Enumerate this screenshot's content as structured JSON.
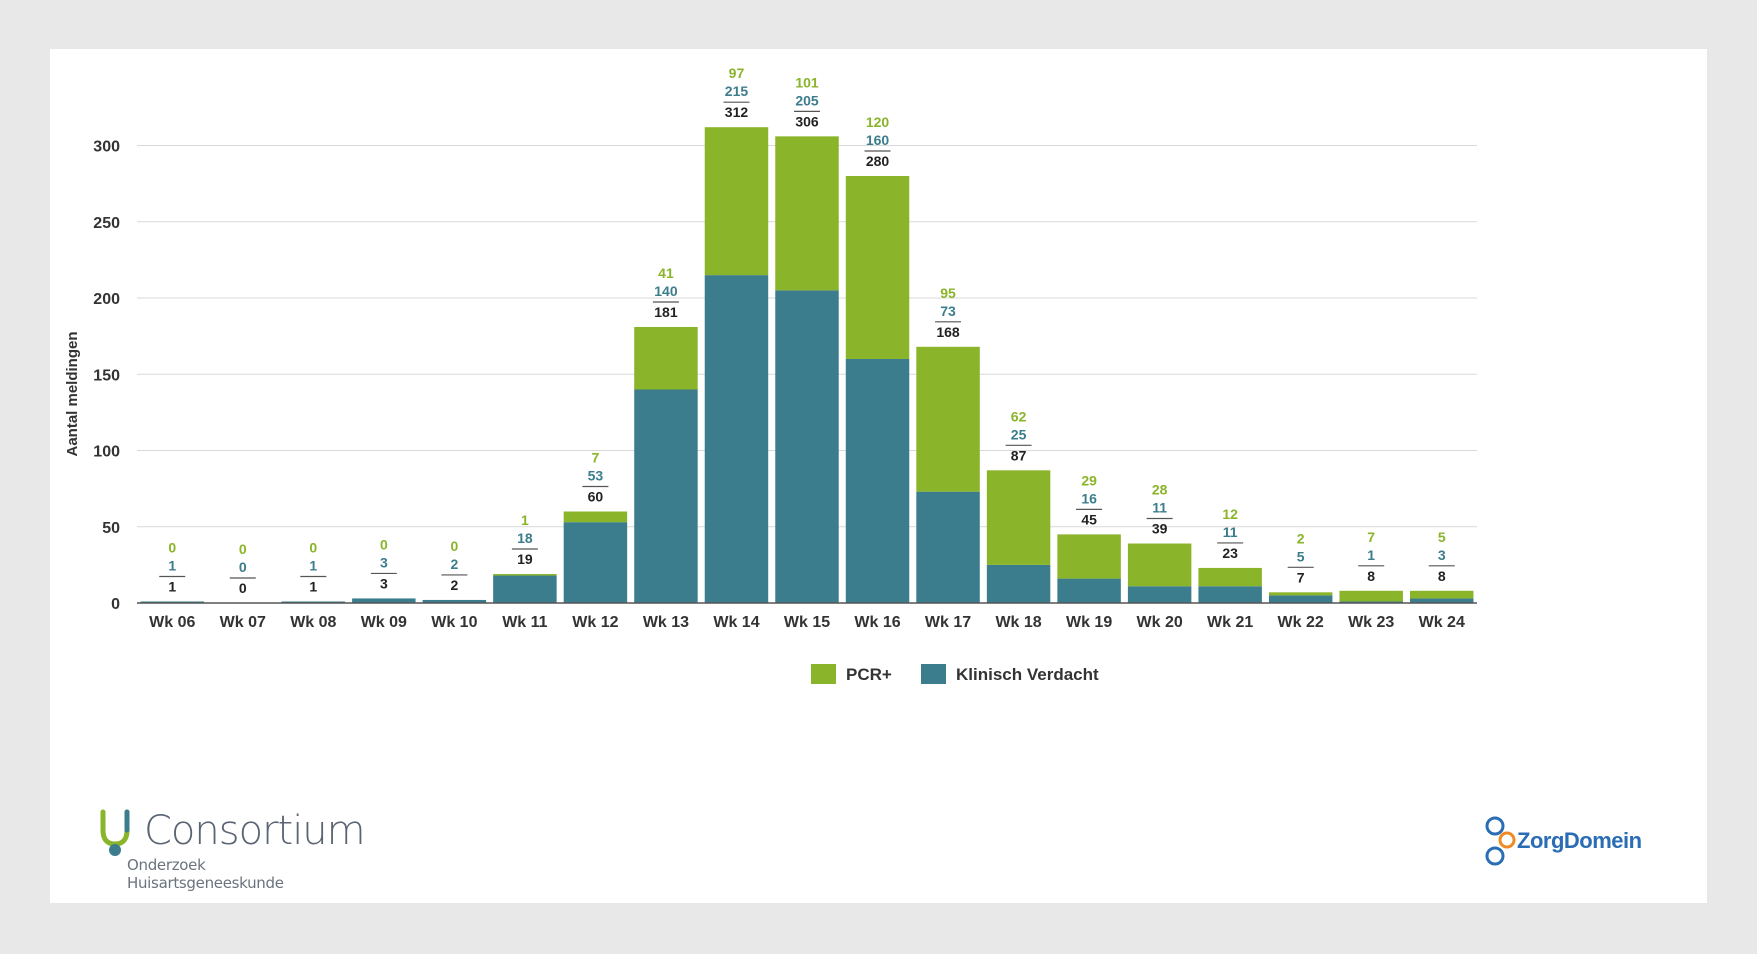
{
  "chart_data": {
    "type": "bar",
    "stacked": true,
    "ylabel": "Aantal meldingen",
    "xlabel": "",
    "ylim": [
      0,
      330
    ],
    "yticks": [
      0,
      50,
      100,
      150,
      200,
      250,
      300
    ],
    "grid": true,
    "legend_position": "bottom-center",
    "categories": [
      "Wk 06",
      "Wk 07",
      "Wk 08",
      "Wk 09",
      "Wk 10",
      "Wk 11",
      "Wk 12",
      "Wk 13",
      "Wk 14",
      "Wk 15",
      "Wk 16",
      "Wk 17",
      "Wk 18",
      "Wk 19",
      "Wk 20",
      "Wk 21",
      "Wk 22",
      "Wk 23",
      "Wk 24"
    ],
    "series": [
      {
        "name": "Klinisch Verdacht",
        "color": "#3b7d8c",
        "values": [
          1,
          0,
          1,
          3,
          2,
          18,
          53,
          140,
          215,
          205,
          160,
          73,
          25,
          16,
          11,
          11,
          5,
          1,
          3
        ]
      },
      {
        "name": "PCR+",
        "color": "#8ab42a",
        "values": [
          0,
          0,
          0,
          0,
          0,
          1,
          7,
          41,
          97,
          101,
          120,
          95,
          62,
          29,
          28,
          12,
          2,
          7,
          5
        ]
      }
    ],
    "totals": [
      1,
      0,
      1,
      3,
      2,
      19,
      60,
      181,
      312,
      306,
      280,
      168,
      87,
      45,
      39,
      23,
      7,
      8,
      8
    ],
    "legend": [
      {
        "label": "PCR+",
        "color": "#8ab42a"
      },
      {
        "label": "Klinisch Verdacht",
        "color": "#3b7d8c"
      }
    ]
  },
  "logos": {
    "left_name": "Consortium",
    "left_sub": "Onderzoek Huisartsgeneeskunde",
    "right_name": "ZorgDomein"
  },
  "colors": {
    "green": "#8ab42a",
    "teal": "#3b7d8c",
    "total_text": "#222222",
    "grid": "#d9d9d9"
  }
}
